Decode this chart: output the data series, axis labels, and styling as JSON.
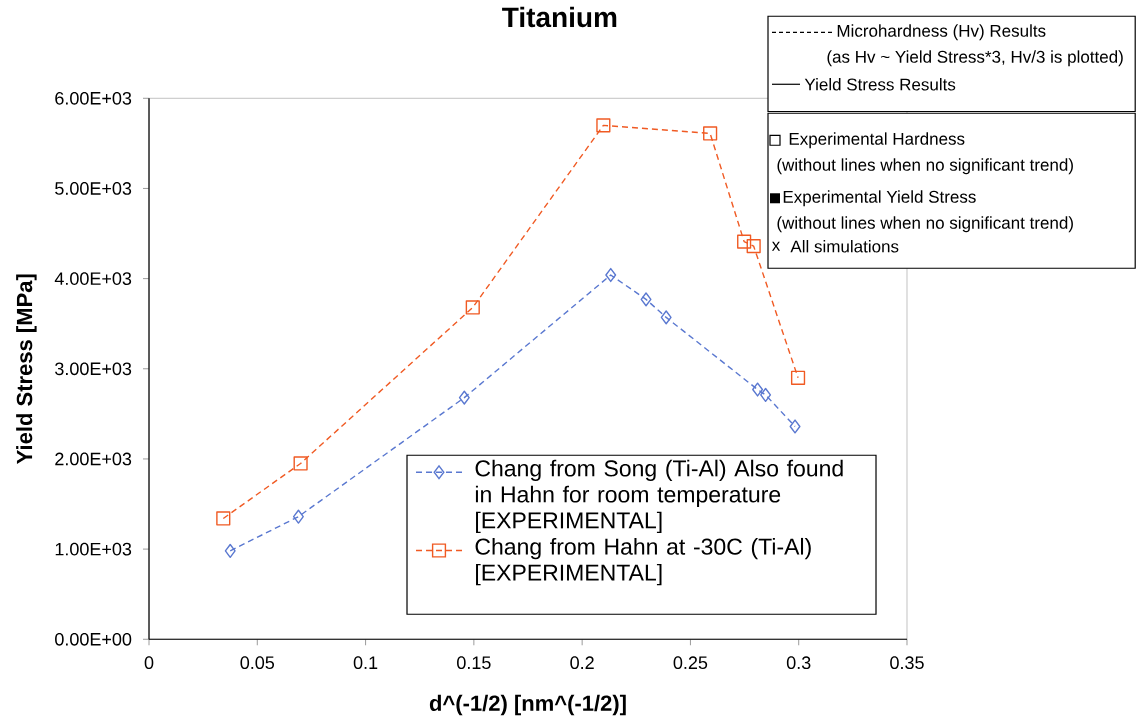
{
  "chart_data": {
    "type": "line",
    "title": "Titanium",
    "xlabel": "d^(-1/2)    [nm^(-1/2)]",
    "ylabel": "Yield Stress [MPa]",
    "xlim": [
      0,
      0.35
    ],
    "xticks": [
      0,
      0.05,
      0.1,
      0.15,
      0.2,
      0.25,
      0.3,
      0.35
    ],
    "ylim": [
      0,
      6000
    ],
    "yticks": [
      {
        "value": 0,
        "label": "0.00E+00"
      },
      {
        "value": 1000,
        "label": "1.00E+03"
      },
      {
        "value": 2000,
        "label": "2.00E+03"
      },
      {
        "value": 3000,
        "label": "3.00E+03"
      },
      {
        "value": 4000,
        "label": "4.00E+03"
      },
      {
        "value": 5000,
        "label": "5.00E+03"
      },
      {
        "value": 6000,
        "label": "6.00E+03"
      }
    ],
    "grid": false,
    "legend": "bottom",
    "line_style": "dashed",
    "series": [
      {
        "name": "Chang from Song (Ti-Al) Also found in Hahn for room temperature [EXPERIMENTAL]",
        "color": "#5a78d0",
        "marker": "diamond",
        "x": [
          0.0375,
          0.069,
          0.1456,
          0.2132,
          0.2295,
          0.2388,
          0.281,
          0.2847,
          0.2983
        ],
        "values": [
          980,
          1360,
          2680,
          4040,
          3770,
          3570,
          2770,
          2710,
          2360
        ]
      },
      {
        "name": "Chang from Hahn at -30C (Ti-Al) [EXPERIMENTAL]",
        "color": "#f05a23",
        "marker": "square",
        "x": [
          0.0343,
          0.07,
          0.1495,
          0.2098,
          0.2591,
          0.2748,
          0.2792,
          0.2997
        ],
        "values": [
          1340,
          1950,
          3680,
          5700,
          5610,
          4410,
          4360,
          2900
        ]
      }
    ],
    "annotations": [
      "Microhardness (Hv) Results",
      "(as Hv ~ Yield Stress*3, Hv/3 is plotted)",
      "Yield Stress Results",
      "Experimental Hardness",
      "(without lines when no significant trend)",
      "Experimental Yield Stress",
      "(without lines when no significant trend)",
      "x",
      "All simulations"
    ]
  }
}
